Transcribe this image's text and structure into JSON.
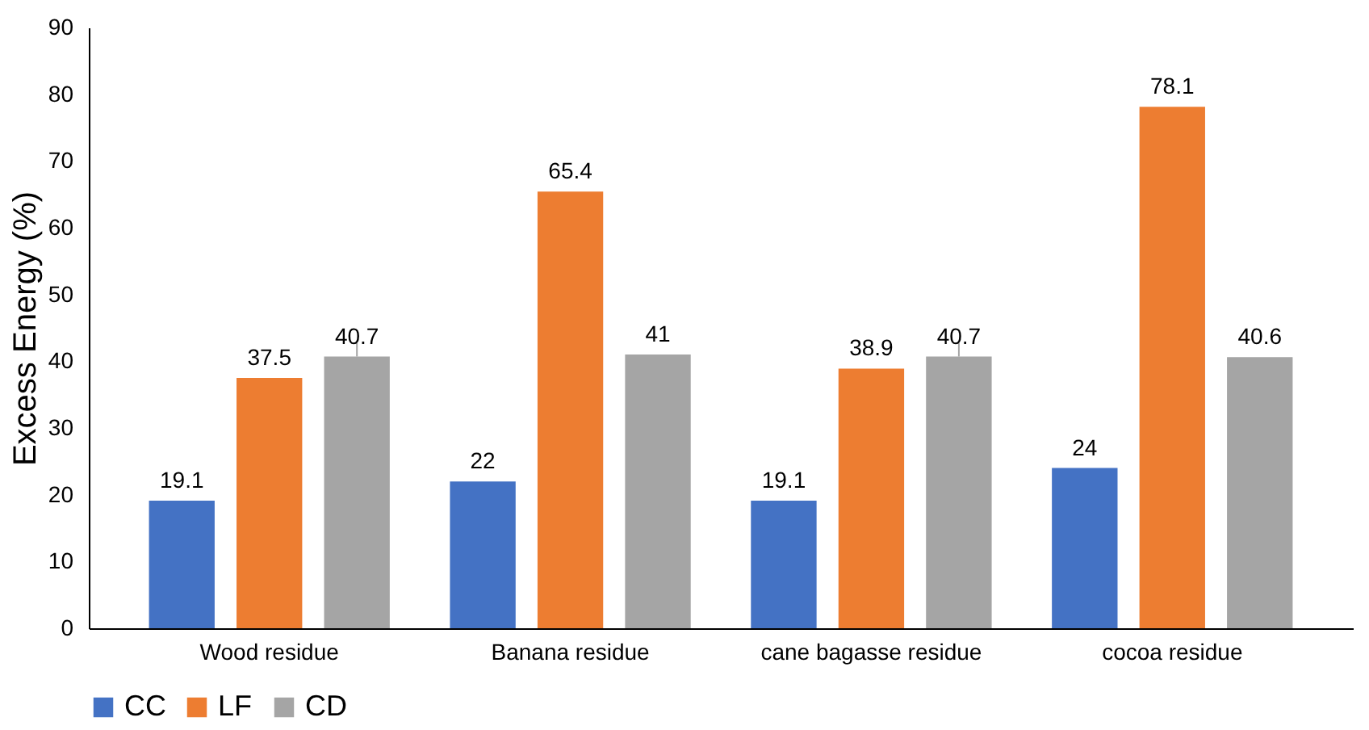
{
  "chart_data": {
    "type": "bar",
    "ylabel": "Excess Energy (%)",
    "categories": [
      "Wood residue",
      "Banana residue",
      "cane bagasse residue",
      "cocoa residue"
    ],
    "series": [
      {
        "name": "CC",
        "color": "#4472c4",
        "values": [
          19.1,
          22,
          19.1,
          24
        ]
      },
      {
        "name": "LF",
        "color": "#ed7d31",
        "values": [
          37.5,
          65.4,
          38.9,
          78.1
        ]
      },
      {
        "name": "CD",
        "color": "#a5a5a5",
        "values": [
          40.7,
          41,
          40.7,
          40.6
        ],
        "errors": [
          [
            40.7,
            42.7
          ],
          null,
          [
            40.7,
            42.7
          ],
          null
        ]
      }
    ],
    "ylim": [
      0,
      90
    ],
    "yticks": [
      0,
      10,
      20,
      30,
      40,
      50,
      60,
      70,
      80,
      90
    ],
    "data_labels": true,
    "grid": false,
    "legend": "bottom"
  }
}
